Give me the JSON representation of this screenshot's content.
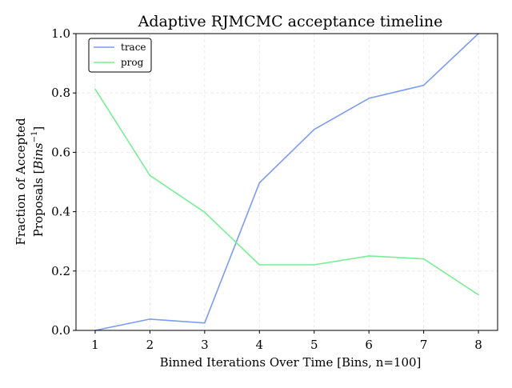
{
  "chart_data": {
    "type": "line",
    "title": "Adaptive RJMCMC acceptance timeline",
    "xlabel": "Binned Iterations Over Time [Bins, n=100]",
    "ylabel_line1": "Fraction of Accepted",
    "ylabel_line2": "Proposals [",
    "ylabel_math": "Bins",
    "ylabel_sup": "−1",
    "ylabel_end": "]",
    "x": [
      1,
      2,
      3,
      4,
      5,
      6,
      7,
      8
    ],
    "xlim": [
      0.65,
      8.35
    ],
    "ylim": [
      0.0,
      1.0
    ],
    "xticks": [
      "1",
      "2",
      "3",
      "4",
      "5",
      "6",
      "7",
      "8"
    ],
    "yticks": [
      "0.0",
      "0.2",
      "0.4",
      "0.6",
      "0.8",
      "1.0"
    ],
    "grid": true,
    "legend_position": "top-left",
    "series": [
      {
        "name": "trace",
        "color": "#7b9cf0",
        "values": [
          0.0,
          0.038,
          0.025,
          0.497,
          0.677,
          0.782,
          0.826,
          1.0
        ]
      },
      {
        "name": "prog",
        "color": "#7aee95",
        "values": [
          0.813,
          0.522,
          0.398,
          0.221,
          0.221,
          0.251,
          0.241,
          0.12
        ]
      }
    ]
  }
}
